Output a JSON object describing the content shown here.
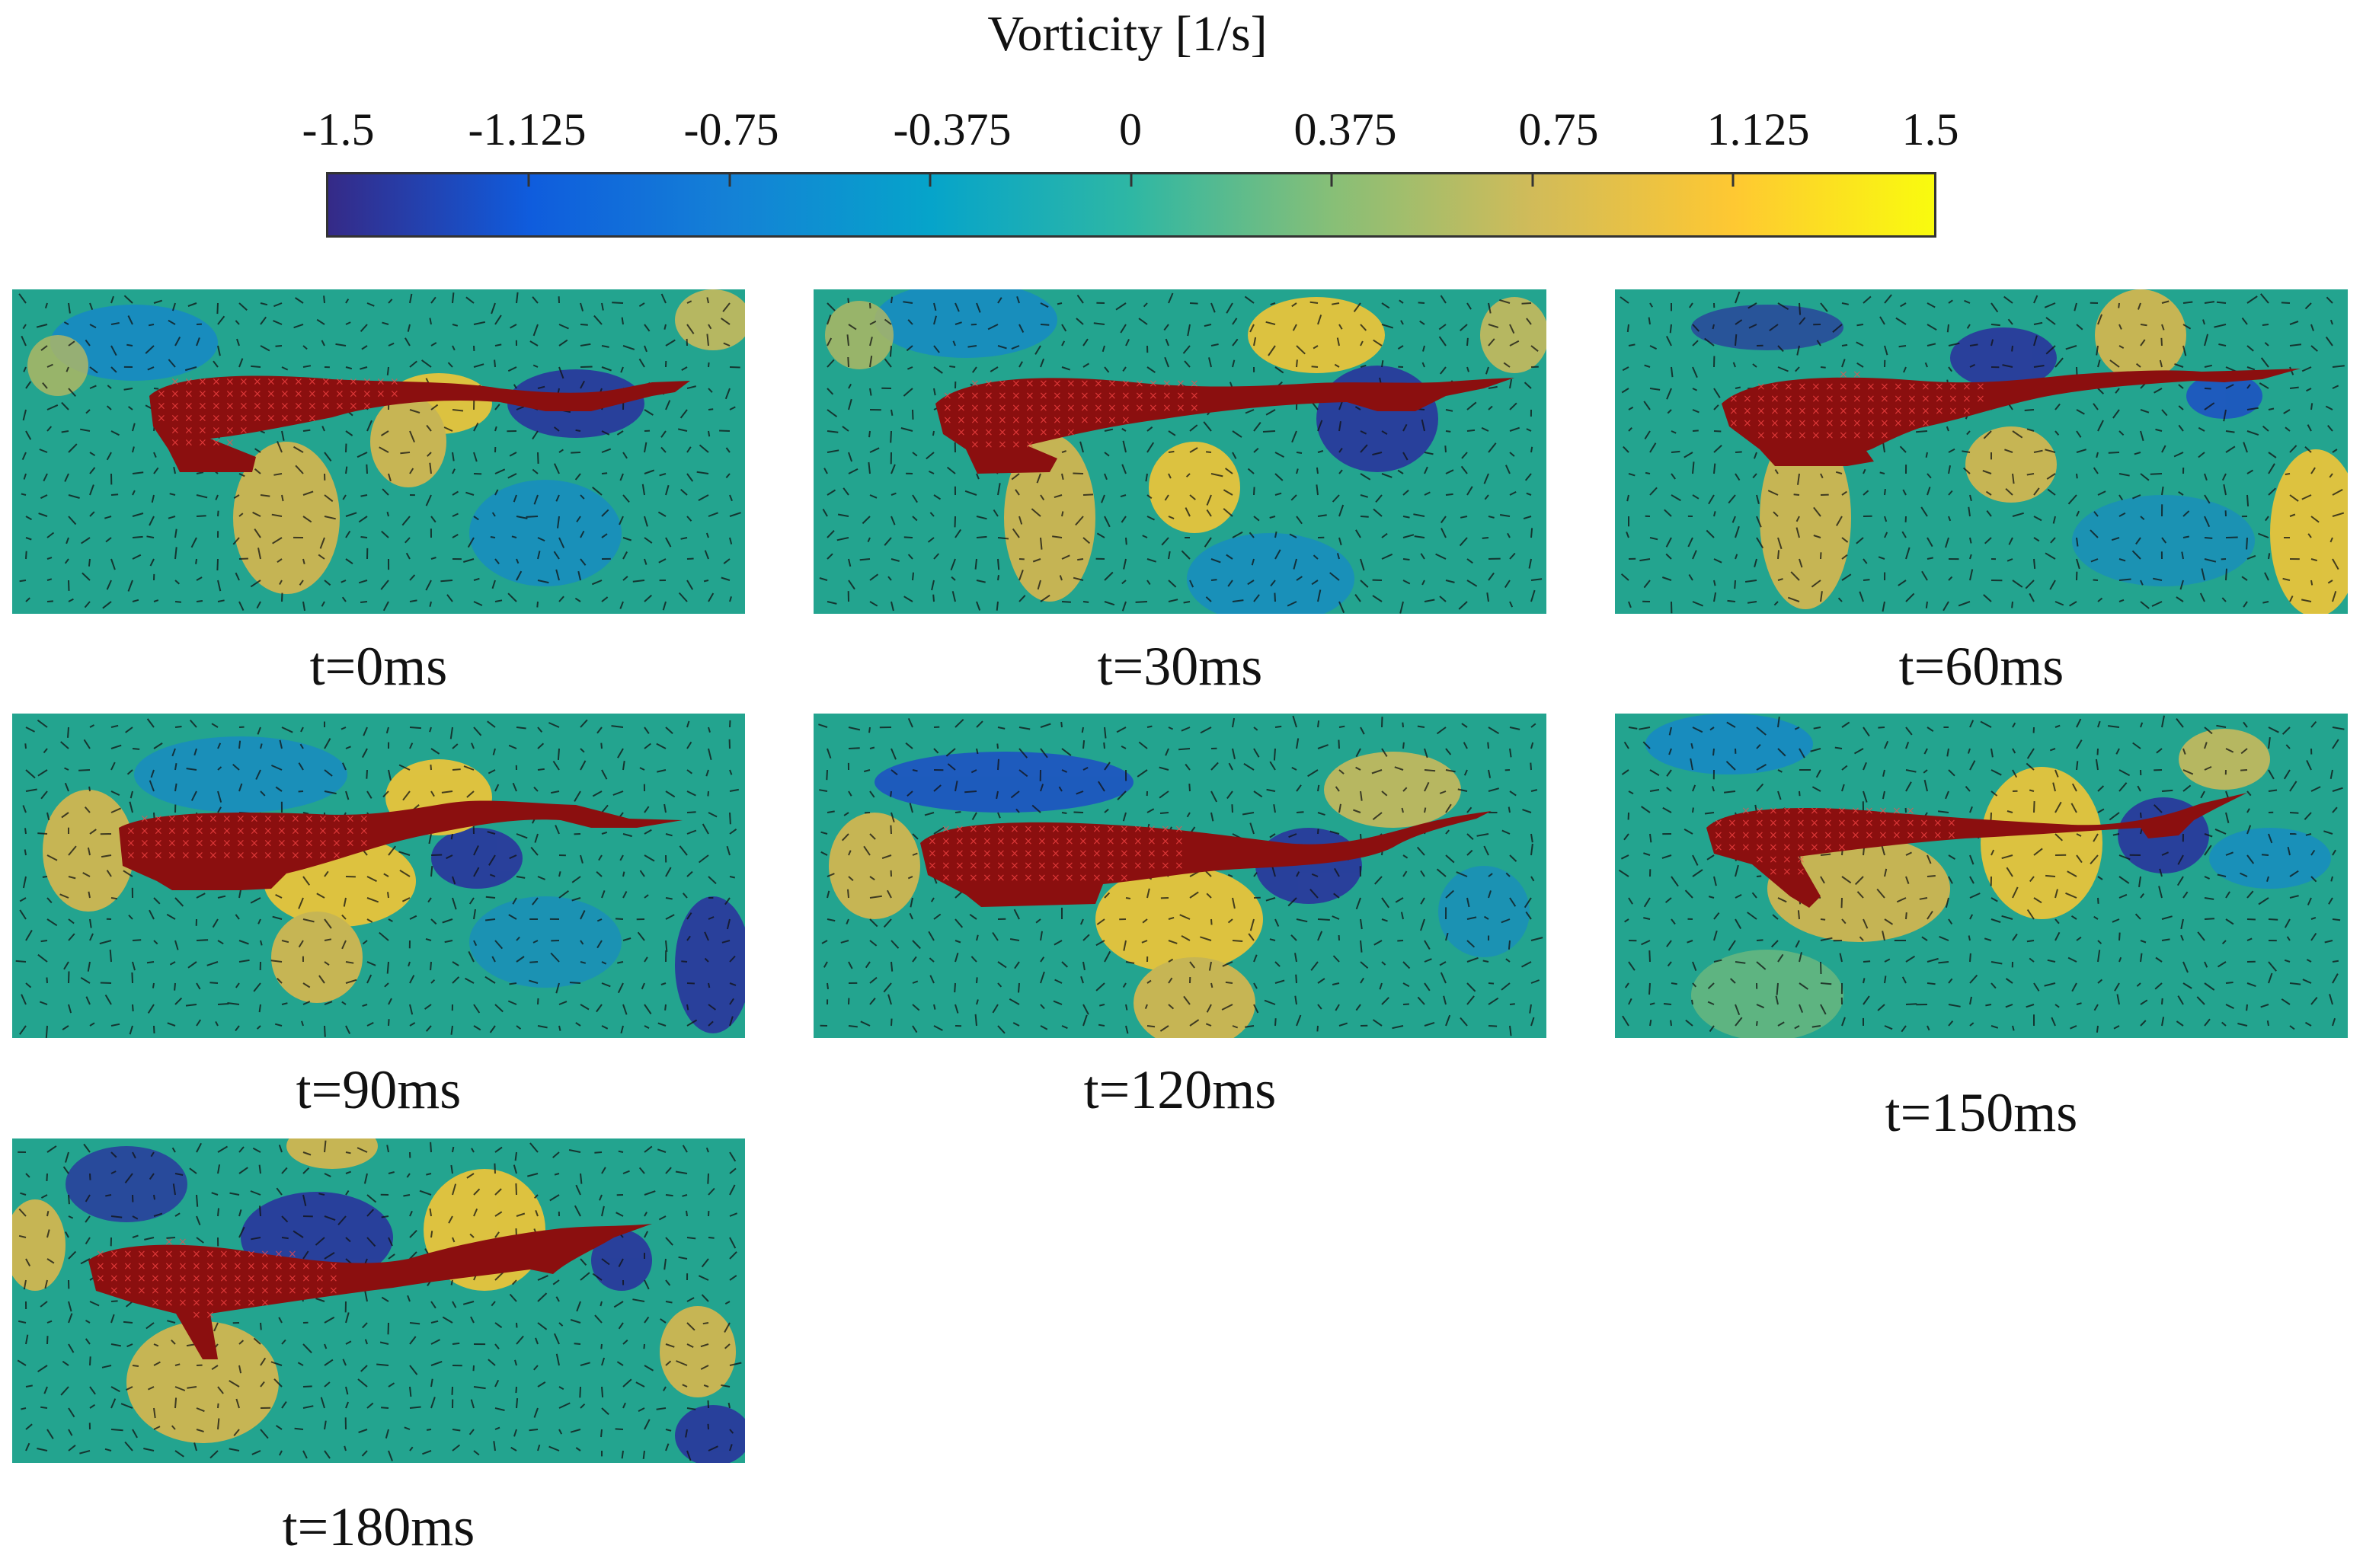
{
  "figure": {
    "colorbar": {
      "title": "Vorticity [1/s]",
      "range": [
        -1.5,
        1.5
      ],
      "ticks": [
        "-1.5",
        "-1.125",
        "-0.75",
        "-0.375",
        "0",
        "0.375",
        "0.75",
        "1.125",
        "1.5"
      ],
      "colormap": "parula",
      "stops": [
        "#352a87",
        "#0f5cdd",
        "#1481d6",
        "#06a4ca",
        "#2eb7a4",
        "#87bf77",
        "#d1bb59",
        "#fec832",
        "#f9fb0e"
      ]
    },
    "panels": [
      {
        "caption": "t=0ms"
      },
      {
        "caption": "t=30ms"
      },
      {
        "caption": "t=60ms"
      },
      {
        "caption": "t=90ms"
      },
      {
        "caption": "t=120ms"
      },
      {
        "caption": "t=150ms"
      },
      {
        "caption": "t=180ms"
      }
    ],
    "colors": {
      "field_base": "#23a48f",
      "fish": "#8b0f0f",
      "fish_marker": "#ff4a4a",
      "vector": "#111111"
    }
  }
}
